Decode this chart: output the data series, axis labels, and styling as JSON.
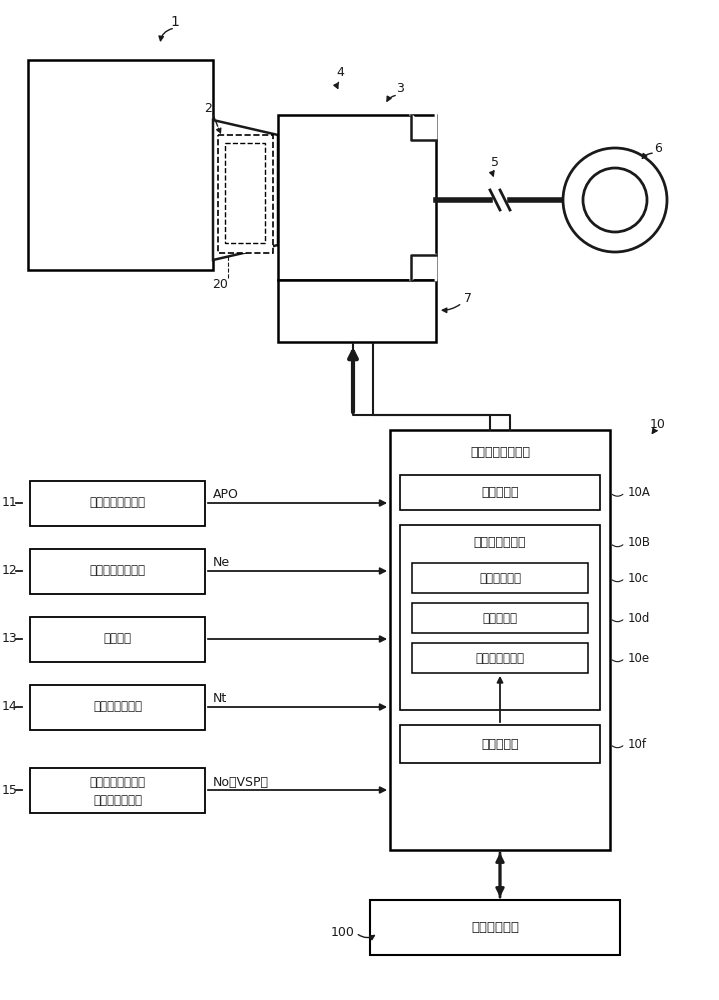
{
  "bg_color": "#ffffff",
  "lc": "#1a1a1a",
  "sensors": [
    {
      "id": "11",
      "label": "加速器开度传感器",
      "label2": null,
      "signal": "APO"
    },
    {
      "id": "12",
      "label": "发动机旋转传感器",
      "label2": null,
      "signal": "Ne"
    },
    {
      "id": "13",
      "label": "档位开关",
      "label2": null,
      "signal": null
    },
    {
      "id": "14",
      "label": "浡轮旋转传感器",
      "label2": null,
      "signal": "Nt"
    },
    {
      "id": "15",
      "label": "输出轴旋转传感器",
      "label2": "（车速传感器）",
      "signal": "No（VSP）"
    }
  ],
  "ctrl_title": "自动变速器控制器",
  "inner_boxes": [
    {
      "label": "变速控制部",
      "tag": "10A",
      "indent": false
    },
    {
      "label": "故障部位检测部",
      "tag": "10B",
      "indent": false
    },
    {
      "label": "变速级监视部",
      "tag": "10c",
      "indent": true
    },
    {
      "label": "故障检测部",
      "tag": "10d",
      "indent": true
    },
    {
      "label": "故障部位限定部",
      "tag": "10e",
      "indent": true
    },
    {
      "label": "映像存储部",
      "tag": "10f",
      "indent": false
    }
  ],
  "engine_label": "发动机控制部",
  "engine_tag": "100"
}
